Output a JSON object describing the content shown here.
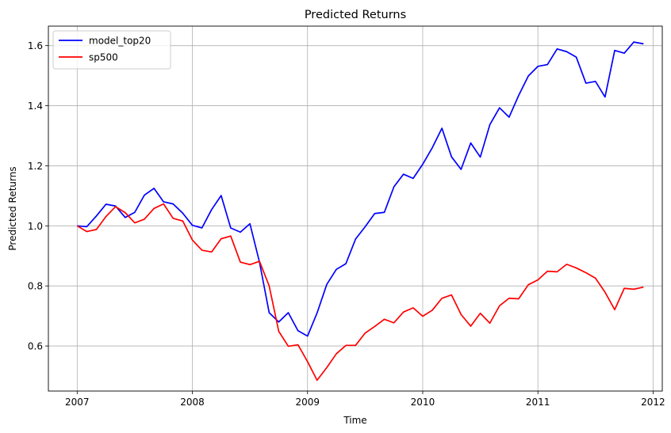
{
  "chart_data": {
    "type": "line",
    "title": "Predicted Returns",
    "xlabel": "Time",
    "ylabel": "Predicted Returns",
    "xlim": [
      2006.75,
      2012.08
    ],
    "ylim": [
      0.45,
      1.665
    ],
    "grid": true,
    "legend_position": "top-left",
    "x_ticks": [
      2007,
      2008,
      2009,
      2010,
      2011,
      2012
    ],
    "x_tick_labels": [
      "2007",
      "2008",
      "2009",
      "2010",
      "2011",
      "2012"
    ],
    "y_ticks": [
      0.6,
      0.8,
      1.0,
      1.2,
      1.4,
      1.6
    ],
    "y_tick_labels": [
      "0.6",
      "0.8",
      "1.0",
      "1.2",
      "1.4",
      "1.6"
    ],
    "x": [
      2007.0,
      2007.083,
      2007.167,
      2007.25,
      2007.333,
      2007.417,
      2007.5,
      2007.583,
      2007.667,
      2007.75,
      2007.833,
      2007.917,
      2008.0,
      2008.083,
      2008.167,
      2008.25,
      2008.333,
      2008.417,
      2008.5,
      2008.583,
      2008.667,
      2008.75,
      2008.833,
      2008.917,
      2009.0,
      2009.083,
      2009.167,
      2009.25,
      2009.333,
      2009.417,
      2009.5,
      2009.583,
      2009.667,
      2009.75,
      2009.833,
      2009.917,
      2010.0,
      2010.083,
      2010.167,
      2010.25,
      2010.333,
      2010.417,
      2010.5,
      2010.583,
      2010.667,
      2010.75,
      2010.833,
      2010.917,
      2011.0,
      2011.083,
      2011.167,
      2011.25,
      2011.333,
      2011.417,
      2011.5,
      2011.583,
      2011.667,
      2011.75,
      2011.833,
      2011.917
    ],
    "series": [
      {
        "name": "model_top20",
        "color": "#0000ff",
        "values": [
          1.0,
          0.997,
          1.033,
          1.072,
          1.066,
          1.028,
          1.045,
          1.102,
          1.125,
          1.08,
          1.073,
          1.042,
          1.002,
          0.993,
          1.054,
          1.101,
          0.993,
          0.979,
          1.007,
          0.879,
          0.711,
          0.68,
          0.711,
          0.651,
          0.633,
          0.71,
          0.805,
          0.855,
          0.874,
          0.956,
          0.997,
          1.041,
          1.045,
          1.13,
          1.172,
          1.158,
          1.205,
          1.26,
          1.325,
          1.23,
          1.188,
          1.276,
          1.229,
          1.337,
          1.393,
          1.362,
          1.434,
          1.499,
          1.531,
          1.537,
          1.589,
          1.58,
          1.562,
          1.475,
          1.481,
          1.429,
          1.584,
          1.575,
          1.612,
          1.606
        ]
      },
      {
        "name": "sp500",
        "color": "#ff0000",
        "values": [
          1.0,
          0.981,
          0.988,
          1.031,
          1.064,
          1.044,
          1.01,
          1.022,
          1.058,
          1.073,
          1.025,
          1.016,
          0.953,
          0.919,
          0.913,
          0.957,
          0.966,
          0.879,
          0.871,
          0.882,
          0.8,
          0.649,
          0.599,
          0.604,
          0.548,
          0.486,
          0.528,
          0.574,
          0.602,
          0.602,
          0.643,
          0.665,
          0.689,
          0.677,
          0.713,
          0.727,
          0.699,
          0.719,
          0.759,
          0.77,
          0.705,
          0.666,
          0.709,
          0.676,
          0.734,
          0.759,
          0.757,
          0.804,
          0.82,
          0.849,
          0.847,
          0.872,
          0.86,
          0.844,
          0.826,
          0.779,
          0.721,
          0.792,
          0.789,
          0.796
        ]
      }
    ]
  }
}
